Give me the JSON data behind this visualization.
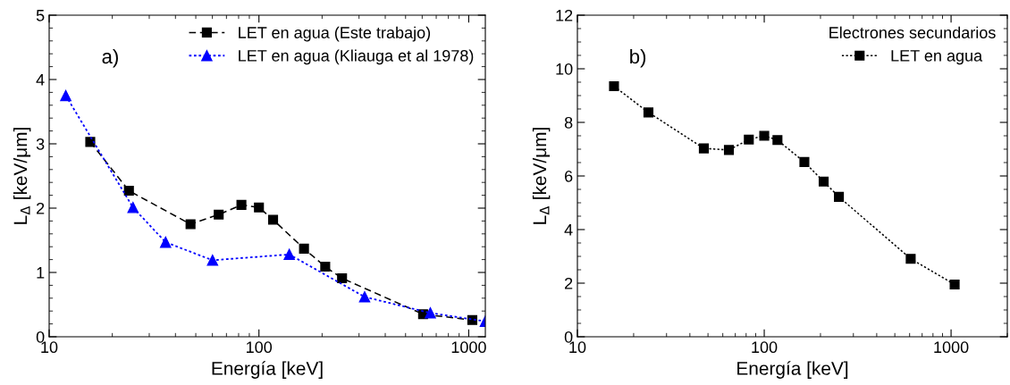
{
  "chart_data": [
    {
      "type": "line",
      "xlabel": "Energía [keV]",
      "ylabel": "L$_{Δ}$ [keV/μm]",
      "log": "x",
      "xlim": [
        10,
        1200
      ],
      "xticks": [
        10,
        100,
        1000
      ],
      "ylim": [
        0,
        5
      ],
      "yticks": [
        0,
        1,
        2,
        3,
        4,
        5
      ],
      "grid": false,
      "legend": "top right",
      "annotations": [
        "a)"
      ],
      "series": [
        {
          "name": "LET en agua (Este trabajo)",
          "color": "#000000",
          "marker": "square",
          "line_style": "dashed",
          "x": [
            15.7,
            24,
            47.2,
            64.3,
            82.5,
            100,
            116.8,
            164,
            207,
            249,
            606,
            1040
          ],
          "values": [
            3.03,
            2.27,
            1.75,
            1.9,
            2.05,
            2.01,
            1.82,
            1.37,
            1.09,
            0.91,
            0.35,
            0.26
          ]
        },
        {
          "name": "LET en agua (Kliauga et al 1978)",
          "color": "#0000ff",
          "marker": "triangle",
          "line_style": "dotted",
          "x": [
            12,
            25.1,
            35.9,
            60.1,
            139.5,
            319,
            656,
            1200
          ],
          "values": [
            3.75,
            2.01,
            1.47,
            1.19,
            1.28,
            0.62,
            0.37,
            0.24
          ]
        }
      ]
    },
    {
      "type": "line",
      "xlabel": "Energía [keV]",
      "ylabel": "L$_{Δ}$ [keV/μm]",
      "log": "x",
      "xlim": [
        10,
        2000
      ],
      "xticks": [
        10,
        100,
        1000
      ],
      "ylim": [
        0,
        12
      ],
      "yticks": [
        0,
        2,
        4,
        6,
        8,
        10,
        12
      ],
      "grid": false,
      "legend": "top right",
      "legend_title": "Electrones secundarios",
      "annotations": [
        "b)"
      ],
      "series": [
        {
          "name": "LET en agua",
          "color": "#000000",
          "marker": "square",
          "line_style": "dotted",
          "x": [
            15.7,
            24,
            47.5,
            64.7,
            82.7,
            100,
            117.7,
            164,
            208,
            251,
            608,
            1045
          ],
          "values": [
            9.35,
            8.37,
            7.03,
            6.97,
            7.36,
            7.5,
            7.34,
            6.52,
            5.79,
            5.22,
            2.91,
            1.95
          ]
        }
      ]
    }
  ]
}
